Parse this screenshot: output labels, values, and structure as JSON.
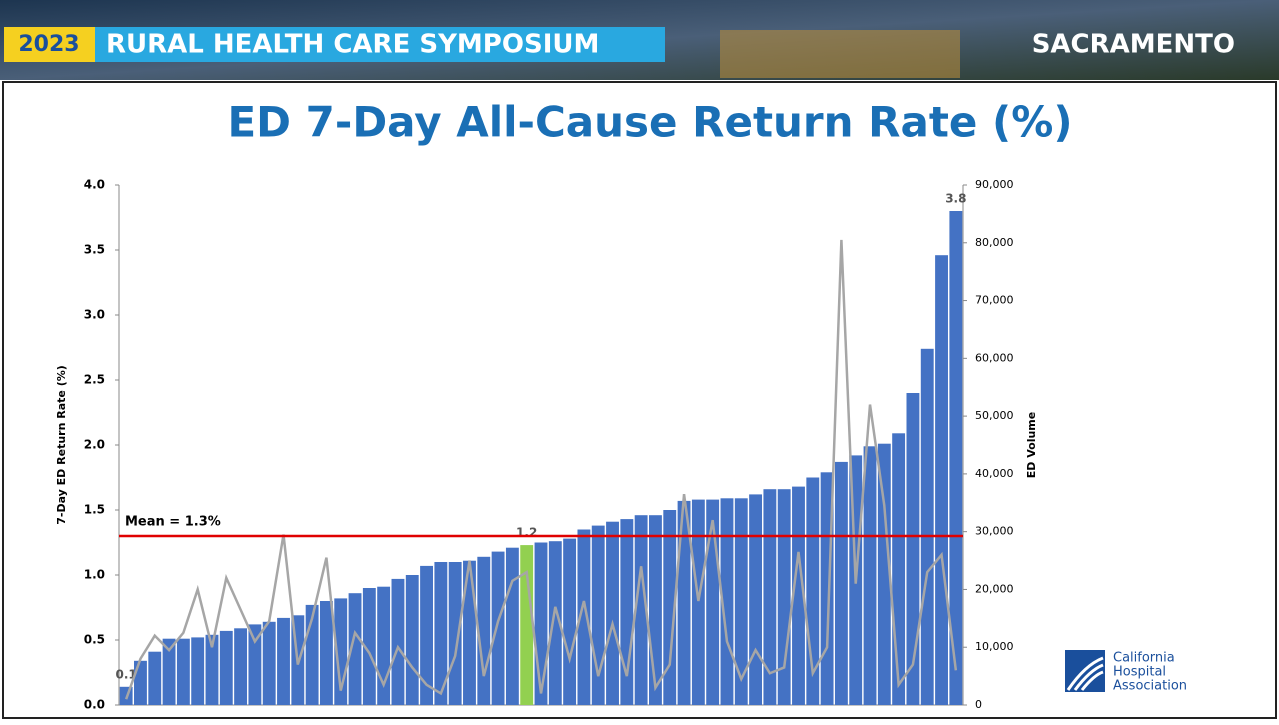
{
  "header": {
    "year": "2023",
    "event": "RURAL HEALTH CARE SYMPOSIUM",
    "city": "SACRAMENTO"
  },
  "logo": {
    "lines": [
      "California",
      "Hospital",
      "Association"
    ]
  },
  "chart_data": {
    "type": "bar",
    "title": "ED 7-Day All-Cause Return Rate (%)",
    "y_label": "7-Day ED Return Rate (%)",
    "y2_label": "ED Volume",
    "ylim": [
      0,
      4
    ],
    "yticks": [
      {
        "value": 0,
        "label": "0.0"
      },
      {
        "value": 0.5,
        "label": "0.5"
      },
      {
        "value": 1,
        "label": "1.0"
      },
      {
        "value": 1.5,
        "label": "1.5"
      },
      {
        "value": 2,
        "label": "2.0"
      },
      {
        "value": 2.5,
        "label": "2.5"
      },
      {
        "value": 3,
        "label": "3.0"
      },
      {
        "value": 3.5,
        "label": "3.5"
      },
      {
        "value": 4,
        "label": "4.0"
      }
    ],
    "y2lim": [
      0,
      90000
    ],
    "y2ticks": [
      0,
      {
        "value": 10000,
        "label": "10,000"
      },
      {
        "value": 20000,
        "label": "20,000"
      },
      {
        "value": 30000,
        "label": "30,000"
      },
      {
        "value": 40000,
        "label": "40,000"
      },
      {
        "value": 50000,
        "label": "50,000"
      },
      {
        "value": 60000,
        "label": "60,000"
      },
      {
        "value": 70000,
        "label": "70,000"
      },
      {
        "value": 80000,
        "label": "80,000"
      },
      {
        "value": 90000,
        "label": "90,000"
      }
    ],
    "reference_line": {
      "value": 1.3,
      "label": "Mean = 1.3%",
      "color": "#e00000"
    },
    "series": [
      {
        "type": "bar",
        "color": "#4472c4",
        "values": [
          0.14,
          0.34,
          0.41,
          0.51,
          0.51,
          0.52,
          0.54,
          0.57,
          0.59,
          0.62,
          0.64,
          0.67,
          0.69,
          0.77,
          0.8,
          0.82,
          0.86,
          0.9,
          0.91,
          0.97,
          1.0,
          1.07,
          1.1,
          1.1,
          1.11,
          1.14,
          1.18,
          1.21,
          1.23,
          1.25,
          1.26,
          1.28,
          1.35,
          1.38,
          1.41,
          1.43,
          1.46,
          1.46,
          1.5,
          1.57,
          1.58,
          1.58,
          1.59,
          1.59,
          1.62,
          1.66,
          1.66,
          1.68,
          1.75,
          1.79,
          1.87,
          1.92,
          1.99,
          2.01,
          2.09,
          2.4,
          2.74,
          3.46,
          3.8
        ],
        "value_labels": [
          "0.1",
          null,
          null,
          null,
          null,
          null,
          null,
          null,
          null,
          null,
          null,
          null,
          null,
          null,
          null,
          null,
          null,
          null,
          null,
          null,
          null,
          null,
          null,
          null,
          null,
          null,
          null,
          null,
          "1.2",
          null,
          null,
          null,
          null,
          null,
          null,
          null,
          null,
          null,
          null,
          null,
          null,
          null,
          null,
          null,
          null,
          null,
          null,
          null,
          null,
          null,
          null,
          null,
          null,
          null,
          null,
          null,
          null,
          null,
          "3.8"
        ],
        "colors": [
          "#4472c4",
          "#4472c4",
          "#4472c4",
          "#4472c4",
          "#4472c4",
          "#4472c4",
          "#4472c4",
          "#4472c4",
          "#4472c4",
          "#4472c4",
          "#4472c4",
          "#4472c4",
          "#4472c4",
          "#4472c4",
          "#4472c4",
          "#4472c4",
          "#4472c4",
          "#4472c4",
          "#4472c4",
          "#4472c4",
          "#4472c4",
          "#4472c4",
          "#4472c4",
          "#4472c4",
          "#4472c4",
          "#4472c4",
          "#4472c4",
          "#4472c4",
          "#92d050",
          "#4472c4",
          "#4472c4",
          "#4472c4",
          "#4472c4",
          "#4472c4",
          "#4472c4",
          "#4472c4",
          "#4472c4",
          "#4472c4",
          "#4472c4",
          "#4472c4",
          "#4472c4",
          "#4472c4",
          "#4472c4",
          "#4472c4",
          "#4472c4",
          "#4472c4",
          "#4472c4",
          "#4472c4",
          "#4472c4",
          "#4472c4",
          "#4472c4",
          "#4472c4",
          "#4472c4",
          "#4472c4",
          "#4472c4",
          "#4472c4",
          "#4472c4",
          "#4472c4",
          "#4472c4"
        ]
      },
      {
        "type": "line",
        "axis": "y2",
        "color": "#a6a6a6",
        "values": [
          1000,
          8000,
          12000,
          9500,
          12500,
          20000,
          10000,
          22000,
          16500,
          11000,
          14500,
          29500,
          7000,
          15000,
          25500,
          2500,
          12500,
          9000,
          3500,
          10000,
          6500,
          3500,
          2000,
          8500,
          25000,
          5000,
          14500,
          21500,
          23000,
          2000,
          17000,
          8000,
          18000,
          5000,
          14000,
          5000,
          24000,
          3000,
          7000,
          36500,
          18000,
          32000,
          11000,
          4500,
          9500,
          5500,
          6500,
          26500,
          5500,
          10000,
          80500,
          21000,
          52000,
          34500,
          3500,
          7000,
          23000,
          26000,
          6000
        ]
      }
    ]
  }
}
